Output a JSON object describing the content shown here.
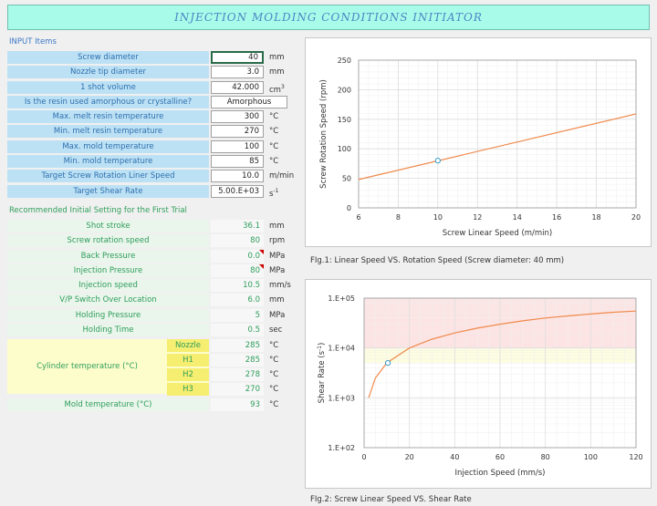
{
  "title": "INJECTION MOLDING CONDITIONS INITIATOR",
  "input_section_title": "INPUT Items",
  "inputs": [
    {
      "label": "Screw diameter",
      "value": "40",
      "unit": "mm"
    },
    {
      "label": "Nozzle tip diameter",
      "value": "3.0",
      "unit": "mm"
    },
    {
      "label": "1 shot volume",
      "value": "42.000",
      "unit": "cm",
      "unit_sup": "3"
    },
    {
      "label": "Is the resin used amorphous or crystalline?",
      "value": "Amorphous",
      "unit": ""
    },
    {
      "label": "Max. melt resin temperature",
      "value": "300",
      "unit": "°C"
    },
    {
      "label": "Min. melt resin temperature",
      "value": "270",
      "unit": "°C"
    },
    {
      "label": "Max. mold temperature",
      "value": "100",
      "unit": "°C"
    },
    {
      "label": "Min. mold temperature",
      "value": "85",
      "unit": "°C"
    },
    {
      "label": "Target Screw Rotation Liner Speed",
      "value": "10.0",
      "unit": "m/min"
    },
    {
      "label": "Target Shear Rate",
      "value": "5.00.E+03",
      "unit": "s",
      "unit_sup": "-1"
    }
  ],
  "recommended_section_title": "Recommended Initial Setting for the First Trial",
  "outputs": [
    {
      "label": "Shot stroke",
      "value": "36.1",
      "unit": "mm"
    },
    {
      "label": "Screw rotation speed",
      "value": "80",
      "unit": "rpm"
    },
    {
      "label": "Back Pressure",
      "value": "0.0",
      "unit": "MPa"
    },
    {
      "label": "Injection Pressure",
      "value": "80",
      "unit": "MPa"
    },
    {
      "label": "Injection speed",
      "value": "10.5",
      "unit": "mm/s"
    },
    {
      "label": "V/P Switch Over Location",
      "value": "6.0",
      "unit": "mm"
    },
    {
      "label": "Holding Pressure",
      "value": "5",
      "unit": "MPa"
    },
    {
      "label": "Holding Time",
      "value": "0.5",
      "unit": "sec"
    }
  ],
  "cylinder": {
    "label": "Cylinder temperature (°C)",
    "zones": [
      {
        "name": "Nozzle",
        "value": "285",
        "unit": "°C"
      },
      {
        "name": "H1",
        "value": "285",
        "unit": "°C"
      },
      {
        "name": "H2",
        "value": "278",
        "unit": "°C"
      },
      {
        "name": "H3",
        "value": "270",
        "unit": "°C"
      }
    ]
  },
  "mold_temp": {
    "label": "Mold temperature (°C)",
    "value": "93",
    "unit": "°C"
  },
  "fig1_caption": "FIg.1: Linear Speed VS. Rotation Speed (Screw diameter: 40 mm)",
  "fig2_caption": "FIg.2: Screw Linear Speed VS. Shear Rate",
  "colors": {
    "curve": "#f08a4b",
    "marker": "#3399cc",
    "band_red": "#fde4e4",
    "band_yellow": "#fdfde0",
    "grid": "#dddddd"
  },
  "chart_data": [
    {
      "type": "line",
      "xlabel": "Screw Linear Speed (m/min)",
      "ylabel": "Screw Rotation Speed (rpm)",
      "xlim": [
        6,
        20
      ],
      "ylim": [
        0,
        250
      ],
      "xticks": [
        6,
        8,
        10,
        12,
        14,
        16,
        18,
        20
      ],
      "yticks": [
        0,
        50,
        100,
        150,
        200,
        250
      ],
      "x": [
        6,
        20
      ],
      "y": [
        48,
        159
      ],
      "marker": {
        "x": 10,
        "y": 80
      },
      "grid": true
    },
    {
      "type": "line",
      "xlabel": "Injection Speed (mm/s)",
      "ylabel": "Shear Rate (s-1)",
      "ylabel_main": "Shear Rate (s",
      "ylabel_sup": "-1",
      "ylabel_end": ")",
      "yscale": "log",
      "xlim": [
        0,
        120
      ],
      "ylim": [
        100,
        100000
      ],
      "xticks": [
        0,
        20,
        40,
        60,
        80,
        100,
        120
      ],
      "yticks": [
        100,
        1000,
        10000,
        100000
      ],
      "ytick_labels": [
        "1.E+02",
        "1.E+03",
        "1.E+04",
        "1.E+05"
      ],
      "x": [
        2,
        5,
        10,
        20,
        30,
        40,
        50,
        60,
        70,
        80,
        90,
        100,
        110,
        120
      ],
      "y": [
        1000,
        2500,
        5000,
        10000,
        15000,
        20000,
        25000,
        30000,
        35000,
        40000,
        44000,
        48000,
        52000,
        55000
      ],
      "marker": {
        "x": 10.5,
        "y": 5000
      },
      "bands": [
        {
          "from": 10000,
          "to": 100000,
          "color": "red"
        },
        {
          "from": 5000,
          "to": 10000,
          "color": "yellow"
        }
      ],
      "grid": true
    }
  ]
}
